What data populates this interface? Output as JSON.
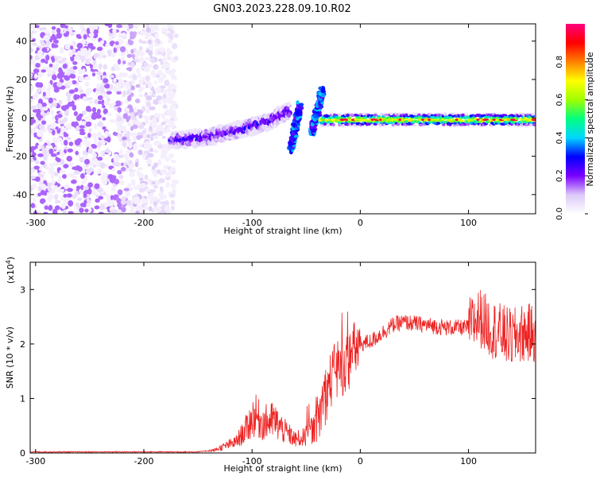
{
  "title": "GN03.2023.228.09.10.R02",
  "chart_data": [
    {
      "type": "heatmap",
      "xlabel": "Height of straight line (km)",
      "ylabel": "Frequency (Hz)",
      "xlim": [
        -305,
        162
      ],
      "ylim": [
        -50,
        49
      ],
      "xticks": [
        -300,
        -200,
        -100,
        0,
        100
      ],
      "yticks": [
        -40,
        -20,
        0,
        20,
        40
      ],
      "colorbar": {
        "label": "Normalized spectral amplitude",
        "range": [
          0,
          1
        ],
        "ticks": [
          0.0,
          0.2,
          0.4,
          0.6,
          0.8
        ],
        "colors": [
          "#ffffff",
          "#dcc8f8",
          "#7a00ff",
          "#0000ff",
          "#00d7ff",
          "#00ff80",
          "#a0ff00",
          "#ffff00",
          "#ff8000",
          "#ff0000",
          "#ff007f"
        ]
      },
      "features": [
        {
          "label": "diffuse noise",
          "x_range": [
            -305,
            -170
          ],
          "freq_range": [
            -50,
            49
          ],
          "amplitude": 0.05
        },
        {
          "label": "ascending branch",
          "x": [
            -175,
            -140,
            -110,
            -85,
            -65
          ],
          "freq": [
            -12,
            -10,
            -6,
            -2,
            4
          ],
          "amplitude": 0.25
        },
        {
          "label": "steep segment 1",
          "x": [
            -64,
            -56
          ],
          "freq": [
            -16,
            6
          ],
          "amplitude": 0.3
        },
        {
          "label": "steep segment 2",
          "x": [
            -45,
            -35
          ],
          "freq": [
            -8,
            14
          ],
          "amplitude": 0.3
        },
        {
          "label": "stable line",
          "x": [
            -37,
            162
          ],
          "freq": [
            -1,
            -1
          ],
          "amplitude": 0.8
        }
      ]
    },
    {
      "type": "line",
      "xlabel": "Height of straight line (km)",
      "ylabel": "SNR (10 * v/v)",
      "scale_label": "(x10",
      "scale_exp": "4",
      "scale_close": ")",
      "xlim": [
        -305,
        162
      ],
      "ylim": [
        0,
        3.5
      ],
      "xticks": [
        -300,
        -200,
        -100,
        0,
        100
      ],
      "yticks": [
        0,
        1,
        2,
        3
      ],
      "series": [
        {
          "color": "#ee2222",
          "x": [
            -305,
            -150,
            -135,
            -115,
            -105,
            -98,
            -90,
            -80,
            -70,
            -60,
            -50,
            -40,
            -35,
            -30,
            -25,
            -20,
            -15,
            -10,
            -5,
            0,
            10,
            20,
            30,
            40,
            60,
            80,
            100,
            110,
            120,
            130,
            140,
            150,
            162
          ],
          "y": [
            0.02,
            0.02,
            0.05,
            0.2,
            0.45,
            0.7,
            0.55,
            0.6,
            0.4,
            0.25,
            0.3,
            0.5,
            0.9,
            1.2,
            1.45,
            1.5,
            1.6,
            1.7,
            1.9,
            2.0,
            2.05,
            2.2,
            2.35,
            2.4,
            2.35,
            2.3,
            2.3,
            2.5,
            2.3,
            2.2,
            2.1,
            2.2,
            2.2
          ]
        }
      ]
    }
  ]
}
